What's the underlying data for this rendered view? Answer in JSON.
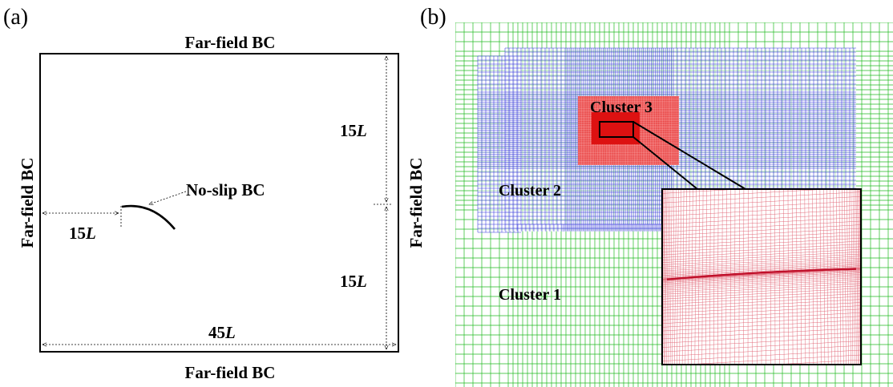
{
  "panel_a": {
    "label": "(a)",
    "bc_top": "Far-field BC",
    "bc_bottom": "Far-field BC",
    "bc_left": "Far-field BC",
    "bc_right": "Far-field BC",
    "noslip": "No-slip BC",
    "dim_upstream": {
      "num": "15",
      "unit": "L"
    },
    "dim_upper": {
      "num": "15",
      "unit": "L"
    },
    "dim_lower": {
      "num": "15",
      "unit": "L"
    },
    "dim_width": {
      "num": "45",
      "unit": "L"
    }
  },
  "panel_b": {
    "label": "(b)",
    "cluster1": "Cluster 1",
    "cluster2": "Cluster 2",
    "cluster3": "Cluster 3"
  },
  "colors": {
    "cluster1_grid": "#22bb22",
    "cluster2_grid": "#3333dd",
    "cluster3_grid": "#dd1111",
    "zoom_grid": "#e06070"
  }
}
